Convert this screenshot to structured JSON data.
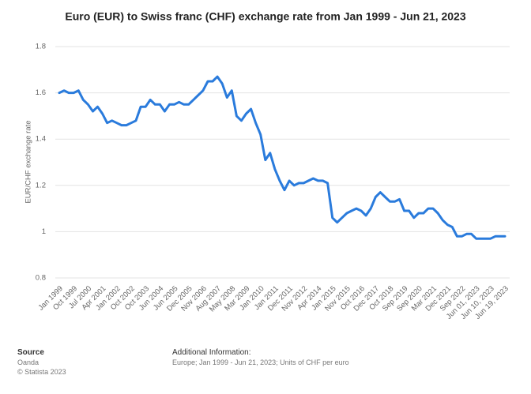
{
  "chart_data": {
    "type": "line",
    "title": "Euro (EUR) to Swiss franc (CHF) exchange rate from Jan 1999 - Jun 21, 2023",
    "y_label": "EUR/CHF exchange rate",
    "categories": [
      "Jan 1999",
      null,
      null,
      "Oct 1999",
      null,
      null,
      "Jul 2000",
      null,
      null,
      "Apr 2001",
      null,
      null,
      "Jan 2002",
      null,
      null,
      "Oct 2002",
      null,
      null,
      "Oct 2003",
      null,
      null,
      "Jun 2004",
      null,
      null,
      "Jun 2005",
      null,
      null,
      "Dec 2005",
      null,
      null,
      "Nov 2006",
      null,
      null,
      "Aug 2007",
      null,
      null,
      "May 2008",
      null,
      null,
      "Mar 2009",
      null,
      null,
      "Jan 2010",
      null,
      null,
      "Jan 2011",
      null,
      null,
      "Dec 2011",
      null,
      null,
      "Nov 2012",
      null,
      null,
      "Apr 2014",
      null,
      null,
      "Jan 2015",
      null,
      null,
      "Nov 2015",
      null,
      null,
      "Oct 2016",
      null,
      null,
      "Dec 2017",
      null,
      null,
      "Oct 2018",
      null,
      null,
      "Sep 2019",
      null,
      null,
      "Sep 2020",
      null,
      null,
      "Mar 2021",
      null,
      null,
      "Dec 2021",
      null,
      null,
      "Sep 2022",
      null,
      null,
      "Jun 01, 2023",
      null,
      null,
      "Jun 10, 2023",
      null,
      null,
      "Jun 19, 2023"
    ],
    "values": [
      1.6,
      1.61,
      1.6,
      1.6,
      1.61,
      1.57,
      1.55,
      1.52,
      1.54,
      1.51,
      1.47,
      1.48,
      1.47,
      1.46,
      1.46,
      1.47,
      1.48,
      1.54,
      1.54,
      1.57,
      1.55,
      1.55,
      1.52,
      1.55,
      1.55,
      1.56,
      1.55,
      1.55,
      1.57,
      1.59,
      1.61,
      1.65,
      1.65,
      1.67,
      1.64,
      1.58,
      1.61,
      1.5,
      1.48,
      1.51,
      1.53,
      1.47,
      1.42,
      1.31,
      1.34,
      1.27,
      1.22,
      1.18,
      1.22,
      1.2,
      1.21,
      1.21,
      1.22,
      1.23,
      1.22,
      1.22,
      1.21,
      1.06,
      1.04,
      1.06,
      1.08,
      1.09,
      1.1,
      1.09,
      1.07,
      1.1,
      1.15,
      1.17,
      1.15,
      1.13,
      1.13,
      1.14,
      1.09,
      1.09,
      1.06,
      1.08,
      1.08,
      1.1,
      1.1,
      1.08,
      1.05,
      1.03,
      1.02,
      0.98,
      0.98,
      0.99,
      0.99,
      0.97,
      0.97,
      0.97,
      0.97,
      0.98,
      0.98,
      0.98
    ],
    "color": "#2a7bdc",
    "ylim": [
      0.8,
      1.8
    ],
    "yticks": [
      0.8,
      1,
      1.2,
      1.4,
      1.6,
      1.8
    ],
    "grid": true
  },
  "footer": {
    "source_heading": "Source",
    "source": "Oanda",
    "copyright": "© Statista 2023",
    "info_heading": "Additional Information:",
    "info": "Europe; Jan 1999 - Jun 21, 2023; Units of CHF per euro"
  }
}
